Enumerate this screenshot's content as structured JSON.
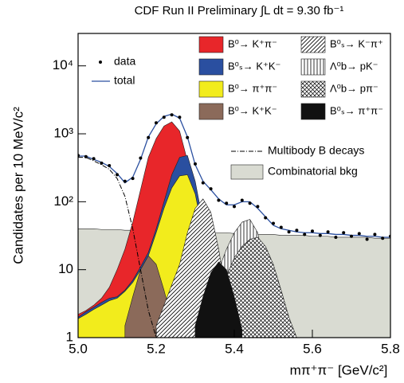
{
  "chart_data": {
    "type": "area",
    "title": "CDF Run II Preliminary ∫L dt = 9.30 fb⁻¹",
    "x_label": "mπ⁺π⁻ [GeV/c²]",
    "y_label": "Candidates per 10 MeV/c²",
    "yscale": "log",
    "xlim": [
      5.0,
      5.8
    ],
    "ylim": [
      1,
      30000
    ],
    "xticks": [
      {
        "value": 5.0,
        "label": "5.0"
      },
      {
        "value": 5.2,
        "label": "5.2"
      },
      {
        "value": 5.4,
        "label": "5.4"
      },
      {
        "value": 5.6,
        "label": "5.6"
      },
      {
        "value": 5.8,
        "label": "5.8"
      }
    ],
    "yticks": [
      1,
      10,
      {
        "value": 100,
        "label": "10²"
      },
      {
        "value": 1000,
        "label": "10³"
      },
      {
        "value": 10000,
        "label": "10⁴"
      }
    ],
    "x": [
      5.0,
      5.02,
      5.04,
      5.06,
      5.08,
      5.1,
      5.12,
      5.14,
      5.16,
      5.18,
      5.2,
      5.22,
      5.24,
      5.26,
      5.28,
      5.3,
      5.32,
      5.34,
      5.36,
      5.38,
      5.4,
      5.42,
      5.44,
      5.46,
      5.48,
      5.5,
      5.52,
      5.54,
      5.56,
      5.58,
      5.6,
      5.62,
      5.64,
      5.66,
      5.68,
      5.7,
      5.72,
      5.74,
      5.76,
      5.78,
      5.8
    ],
    "series": [
      {
        "name": "Combinatorial bkg",
        "type": "area",
        "color": "#d9dbd2",
        "values": [
          40,
          40,
          40,
          39,
          39,
          39,
          38,
          38,
          38,
          38,
          37,
          37,
          37,
          36,
          36,
          36,
          35,
          35,
          35,
          35,
          34,
          34,
          34,
          33,
          33,
          33,
          32,
          32,
          32,
          32,
          31,
          31,
          31,
          30,
          30,
          30,
          30,
          30,
          29,
          29,
          29
        ]
      },
      {
        "name": "B⁰→ K⁺π⁻",
        "type": "area",
        "color": "#e8262a",
        "values": [
          2.2,
          2.5,
          3,
          3.8,
          5.5,
          10,
          20,
          50,
          150,
          450,
          850,
          1300,
          1500,
          1100,
          400,
          60,
          8,
          1.5,
          null,
          null,
          null,
          null,
          null,
          null,
          null,
          null,
          null,
          null,
          null,
          null,
          null,
          null,
          null,
          null,
          null,
          null,
          null,
          null,
          null,
          null,
          null
        ]
      },
      {
        "name": "B⁰ₛ→ K⁺K⁻",
        "type": "area",
        "color": "#2a4fa0",
        "values": [
          2,
          2.4,
          2.8,
          3.3,
          3.8,
          4,
          5,
          7,
          11,
          18,
          40,
          100,
          250,
          450,
          480,
          200,
          50,
          10,
          2,
          null,
          null,
          null,
          null,
          null,
          null,
          null,
          null,
          null,
          null,
          null,
          null,
          null,
          null,
          null,
          null,
          null,
          null,
          null,
          null,
          null,
          null
        ]
      },
      {
        "name": "B⁰→ π⁺π⁻",
        "type": "area",
        "color": "#f2ec1c",
        "values": [
          1.9,
          2.2,
          2.6,
          3,
          3.5,
          3.8,
          4.8,
          6.5,
          10,
          16,
          35,
          80,
          160,
          240,
          250,
          130,
          35,
          8,
          2,
          1,
          null,
          null,
          null,
          null,
          null,
          null,
          null,
          null,
          null,
          null,
          null,
          null,
          null,
          null,
          null,
          null,
          null,
          null,
          null,
          null,
          null
        ]
      },
      {
        "name": "B⁰→ K⁺K⁻",
        "type": "area",
        "color": "#8b6a5a",
        "values": [
          null,
          null,
          null,
          null,
          null,
          null,
          1.5,
          4,
          10,
          16,
          12,
          5,
          1.8,
          1,
          null,
          null,
          null,
          null,
          null,
          null,
          null,
          null,
          null,
          null,
          null,
          null,
          null,
          null,
          null,
          null,
          null,
          null,
          null,
          null,
          null,
          null,
          null,
          null,
          null,
          null,
          null
        ]
      },
      {
        "name": "B⁰ₛ→ K⁻π⁺",
        "type": "area",
        "color": "#000000",
        "pattern": "diagonal",
        "values": [
          null,
          null,
          null,
          null,
          null,
          null,
          null,
          null,
          null,
          null,
          1.5,
          3,
          6,
          12,
          35,
          80,
          110,
          70,
          20,
          4,
          1.2,
          null,
          null,
          null,
          null,
          null,
          null,
          null,
          null,
          null,
          null,
          null,
          null,
          null,
          null,
          null,
          null,
          null,
          null,
          null,
          null
        ]
      },
      {
        "name": "Λ⁰b→ pK⁻",
        "type": "area",
        "color": "#000000",
        "pattern": "vertical",
        "values": [
          null,
          null,
          null,
          null,
          null,
          null,
          null,
          null,
          null,
          null,
          null,
          null,
          null,
          null,
          null,
          1.5,
          3,
          5,
          10,
          20,
          35,
          50,
          55,
          35,
          10,
          2,
          1,
          null,
          null,
          null,
          null,
          null,
          null,
          null,
          null,
          null,
          null,
          null,
          null,
          null,
          null
        ]
      },
      {
        "name": "Λ⁰b→ pπ⁻",
        "type": "area",
        "color": "#000000",
        "pattern": "crosshatch",
        "values": [
          null,
          null,
          null,
          null,
          null,
          null,
          null,
          null,
          null,
          null,
          null,
          null,
          null,
          null,
          null,
          null,
          null,
          2,
          4,
          8,
          15,
          22,
          28,
          30,
          22,
          12,
          5,
          2,
          1,
          null,
          null,
          null,
          null,
          null,
          null,
          null,
          null,
          null,
          null,
          null,
          null
        ]
      },
      {
        "name": "B⁰ₛ→ π⁺π⁻",
        "type": "area",
        "color": "#111111",
        "values": [
          null,
          null,
          null,
          null,
          null,
          null,
          null,
          null,
          null,
          null,
          null,
          null,
          null,
          null,
          null,
          1.5,
          4,
          9,
          13,
          10,
          4,
          1.3,
          null,
          null,
          null,
          null,
          null,
          null,
          null,
          null,
          null,
          null,
          null,
          null,
          null,
          null,
          null,
          null,
          null,
          null,
          null
        ]
      },
      {
        "name": "Multibody B decays",
        "type": "line",
        "dash": "dashdot",
        "color": "#000000",
        "values": [
          450,
          450,
          400,
          350,
          300,
          220,
          120,
          40,
          10,
          2.5,
          1,
          null,
          null,
          null,
          null,
          null,
          null,
          null,
          null,
          null,
          null,
          null,
          null,
          null,
          null,
          null,
          null,
          null,
          null,
          null,
          null,
          null,
          null,
          null,
          null,
          null,
          null,
          null,
          null,
          null,
          null
        ]
      },
      {
        "name": "total",
        "type": "line",
        "color": "#2a4fa0",
        "values": [
          470,
          470,
          420,
          380,
          330,
          260,
          190,
          230,
          420,
          900,
          1400,
          1800,
          1950,
          1700,
          900,
          350,
          200,
          150,
          110,
          90,
          90,
          100,
          100,
          80,
          60,
          45,
          40,
          38,
          36,
          35,
          35,
          34,
          34,
          33,
          33,
          32,
          32,
          31,
          31,
          30,
          30
        ]
      },
      {
        "name": "data",
        "type": "scatter",
        "color": "#000000",
        "values": [
          480,
          460,
          430,
          370,
          340,
          250,
          200,
          220,
          440,
          880,
          1450,
          1750,
          1900,
          1750,
          880,
          360,
          190,
          155,
          105,
          95,
          85,
          105,
          95,
          85,
          58,
          48,
          42,
          36,
          38,
          33,
          37,
          32,
          36,
          30,
          35,
          31,
          34,
          28,
          33,
          29,
          31
        ]
      }
    ]
  }
}
